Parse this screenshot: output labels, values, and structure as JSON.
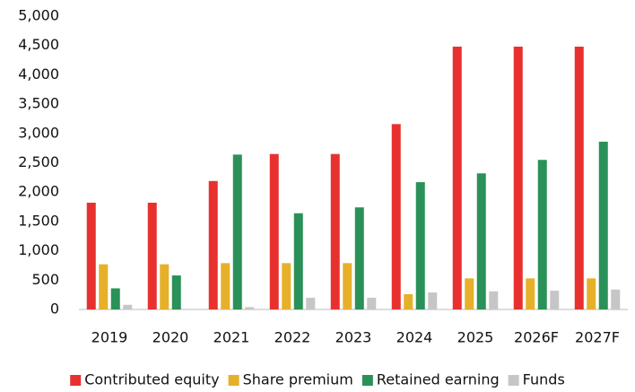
{
  "chart_data": {
    "type": "bar",
    "categories": [
      "2019",
      "2020",
      "2021",
      "2022",
      "2023",
      "2024",
      "2025",
      "2026F",
      "2027F"
    ],
    "series": [
      {
        "name": "Contributed equity",
        "color": "#e8312f",
        "values": [
          1820,
          1820,
          2190,
          2650,
          2650,
          3160,
          4480,
          4480,
          4480
        ]
      },
      {
        "name": "Share premium",
        "color": "#e6b02a",
        "values": [
          770,
          770,
          790,
          790,
          790,
          260,
          530,
          530,
          530
        ]
      },
      {
        "name": "Retained earning",
        "color": "#2a9158",
        "values": [
          360,
          580,
          2640,
          1640,
          1740,
          2170,
          2320,
          2550,
          2860
        ]
      },
      {
        "name": "Funds",
        "color": "#c6c6c6",
        "values": [
          80,
          10,
          40,
          200,
          200,
          290,
          310,
          320,
          340
        ]
      }
    ],
    "ylim": [
      0,
      5000
    ],
    "yticks": [
      0,
      500,
      {
        "value": 1000,
        "label": "1,000"
      },
      {
        "value": 1500,
        "label": "1,500"
      },
      {
        "value": 2000,
        "label": "2,000"
      },
      {
        "value": 2500,
        "label": "2,500"
      },
      {
        "value": 3000,
        "label": "3,000"
      },
      {
        "value": 3500,
        "label": "3,500"
      },
      {
        "value": 4000,
        "label": "4,000"
      },
      {
        "value": 4500,
        "label": "4,500"
      },
      {
        "value": 5000,
        "label": "5,000"
      }
    ],
    "legend": "bottom"
  }
}
